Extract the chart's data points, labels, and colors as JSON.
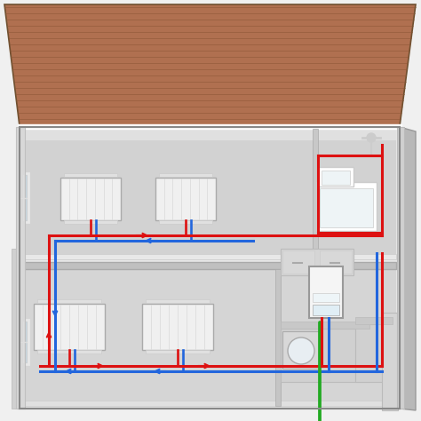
{
  "fig_w": 4.74,
  "fig_h": 4.74,
  "dpi": 100,
  "bg": "#f0f0f0",
  "roof_main": "#b07050",
  "roof_dark": "#8a5535",
  "roof_light": "#c08060",
  "wall_outer": "#e8e8e8",
  "wall_inner_up": "#d0d0d0",
  "wall_inner_dn": "#c8c8c8",
  "wall_side": "#b8b8b8",
  "wall_back": "#d8d8d8",
  "floor_color": "#c0c0c0",
  "baseboard": "#e0e0e0",
  "white": "#ffffff",
  "pipe_red": "#dd1111",
  "pipe_blue": "#2266dd",
  "pipe_green": "#22aa22",
  "pipe_lw": 2.2,
  "rad_face": "#f0f0f0",
  "rad_edge": "#aaaaaa",
  "boiler_face": "#f5f5f5",
  "furniture": "#cccccc",
  "furniture_dark": "#bbbbbb"
}
